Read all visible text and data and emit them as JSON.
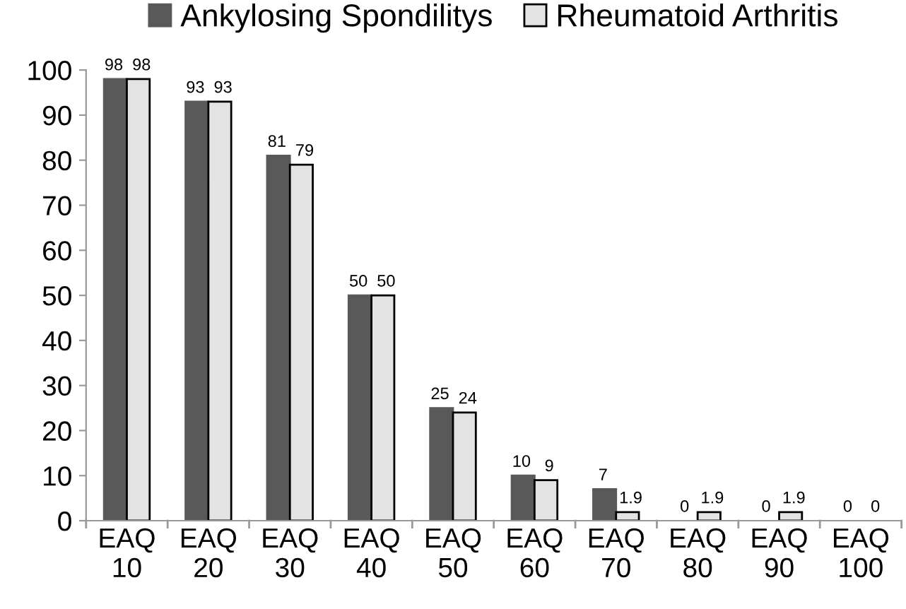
{
  "chart_data": {
    "type": "bar",
    "categories": [
      "EAQ\n10",
      "EAQ\n20",
      "EAQ\n30",
      "EAQ\n40",
      "EAQ\n50",
      "EAQ\n60",
      "EAQ\n70",
      "EAQ\n80",
      "EAQ\n90",
      "EAQ\n100"
    ],
    "series": [
      {
        "name": "Ankylosing Spondilitys",
        "color": "#595959",
        "values": [
          98,
          93,
          81,
          50,
          25,
          10,
          7,
          0,
          0,
          0
        ]
      },
      {
        "name": "Rheumatoid Arthritis",
        "color": "#e3e3e3",
        "values": [
          98,
          93,
          79,
          50,
          24,
          9,
          1.9,
          1.9,
          1.9,
          0
        ]
      }
    ],
    "ylim": [
      0,
      100
    ],
    "yticks": [
      0,
      10,
      20,
      30,
      40,
      50,
      60,
      70,
      80,
      90,
      100
    ],
    "data_labels": true,
    "grid": false,
    "legend": "top"
  }
}
